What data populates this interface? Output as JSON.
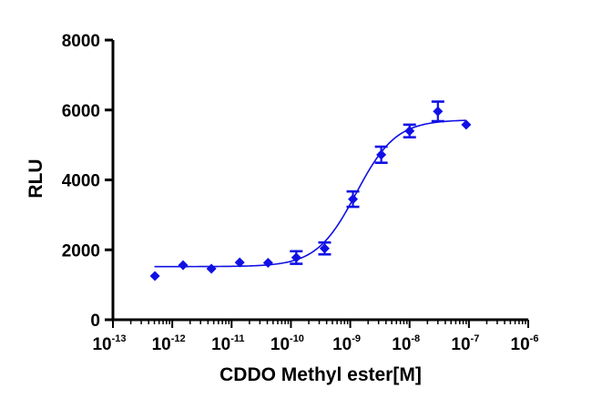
{
  "chart_data": {
    "type": "scatter",
    "title": "",
    "xlabel": "CDDO Methyl ester[M]",
    "ylabel": "RLU",
    "x_scale": "log10",
    "xlim": [
      1e-13,
      1e-06
    ],
    "ylim": [
      0,
      8000
    ],
    "grid": false,
    "legend": "none",
    "x_ticks": [
      {
        "base": "10",
        "exp": "-13",
        "value": -13
      },
      {
        "base": "10",
        "exp": "-12",
        "value": -12
      },
      {
        "base": "10",
        "exp": "-11",
        "value": -11
      },
      {
        "base": "10",
        "exp": "-10",
        "value": -10
      },
      {
        "base": "10",
        "exp": "-9",
        "value": -9
      },
      {
        "base": "10",
        "exp": "-8",
        "value": -8
      },
      {
        "base": "10",
        "exp": "-7",
        "value": -7
      },
      {
        "base": "10",
        "exp": "-6",
        "value": -6
      }
    ],
    "y_ticks": [
      {
        "label": "0",
        "value": 0
      },
      {
        "label": "2000",
        "value": 2000
      },
      {
        "label": "4000",
        "value": 4000
      },
      {
        "label": "6000",
        "value": 6000
      },
      {
        "label": "8000",
        "value": 8000
      }
    ],
    "series": [
      {
        "name": "CDDO Methyl ester",
        "color": "#1010e6",
        "marker": "diamond",
        "points": [
          {
            "x": 5.1e-13,
            "y": 1250,
            "err": 0
          },
          {
            "x": 1.52e-12,
            "y": 1560,
            "err": 0
          },
          {
            "x": 4.57e-12,
            "y": 1460,
            "err": 0
          },
          {
            "x": 1.37e-11,
            "y": 1640,
            "err": 0
          },
          {
            "x": 4.12e-11,
            "y": 1630,
            "err": 0
          },
          {
            "x": 1.23e-10,
            "y": 1780,
            "err": 180
          },
          {
            "x": 3.7e-10,
            "y": 2040,
            "err": 170
          },
          {
            "x": 1.11e-09,
            "y": 3450,
            "err": 220
          },
          {
            "x": 3.33e-09,
            "y": 4720,
            "err": 230
          },
          {
            "x": 1e-08,
            "y": 5400,
            "err": 180
          },
          {
            "x": 3e-08,
            "y": 5960,
            "err": 280
          },
          {
            "x": 9e-08,
            "y": 5580,
            "err": 0
          }
        ],
        "fit": {
          "model": "4PL",
          "bottom": 1520,
          "top": 5720,
          "logEC50": -8.9,
          "hill": 1.3,
          "x_from": -12.3,
          "x_to": -7.05
        }
      }
    ]
  }
}
